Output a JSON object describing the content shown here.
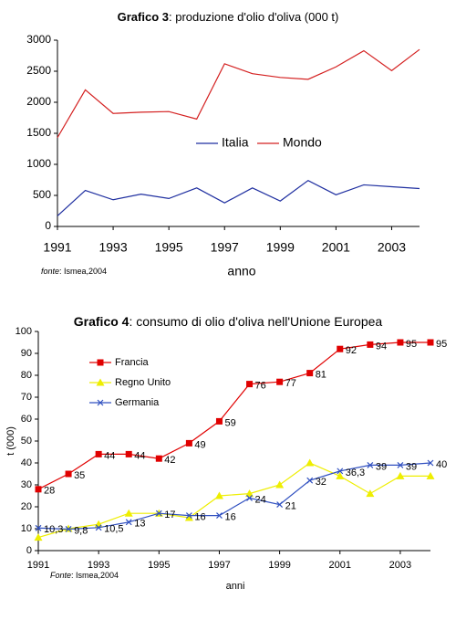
{
  "chart_data": [
    {
      "type": "line",
      "title_bold": "Grafico 3",
      "title": ": produzione d'olio d'oliva (000 t)",
      "x": [
        1991,
        1992,
        1993,
        1994,
        1995,
        1996,
        1997,
        1998,
        1999,
        2000,
        2001,
        2002,
        2003,
        2004
      ],
      "series": [
        {
          "name": "Italia",
          "color": "#1f2fa0",
          "values": [
            170,
            580,
            430,
            520,
            450,
            620,
            380,
            620,
            410,
            740,
            510,
            670,
            640,
            610
          ]
        },
        {
          "name": "Mondo",
          "color": "#d42020",
          "values": [
            1430,
            2200,
            1820,
            1840,
            1850,
            1730,
            2620,
            2460,
            2400,
            2370,
            2570,
            2830,
            2510,
            2850
          ]
        }
      ],
      "xlim": [
        1991,
        2004
      ],
      "xticks": [
        1991,
        1993,
        1995,
        1997,
        1999,
        2001,
        2003
      ],
      "ylim": [
        0,
        3000
      ],
      "yticks": [
        0,
        500,
        1000,
        1500,
        2000,
        2500,
        3000
      ],
      "xlabel": "anno",
      "source_label": "fonte",
      "source": ": Ismea,2004",
      "legend": "center",
      "grid": false
    },
    {
      "type": "line",
      "title_bold": "Grafico 4",
      "title": ": consumo di olio d'oliva nell'Unione Europea",
      "x": [
        1991,
        1992,
        1993,
        1994,
        1995,
        1996,
        1997,
        1998,
        1999,
        2000,
        2001,
        2002,
        2003,
        2004
      ],
      "series": [
        {
          "name": "Francia",
          "color": "#e00000",
          "marker": "square",
          "show_labels": true,
          "values": [
            28,
            35,
            44,
            44,
            42,
            49,
            59,
            76,
            77,
            81,
            92,
            94,
            95,
            95
          ]
        },
        {
          "name": "Regno Unito",
          "color": "#eeee00",
          "marker": "triangle",
          "show_labels": false,
          "values": [
            6,
            10,
            12,
            17,
            17,
            15,
            25,
            26,
            30,
            40,
            34,
            26,
            34,
            34
          ]
        },
        {
          "name": "Germania",
          "color": "#3050c0",
          "marker": "x",
          "show_labels": true,
          "values": [
            10.3,
            9.8,
            10.5,
            13,
            17,
            16,
            16,
            24,
            21,
            32,
            36.3,
            39,
            39,
            40
          ],
          "value_labels": [
            "10,3",
            "9,8",
            "10,5",
            "13",
            "17",
            "16",
            "16",
            "24",
            "21",
            "32",
            "36,3",
            "39",
            "39",
            "40"
          ]
        }
      ],
      "xlim": [
        1991,
        2004
      ],
      "xticks": [
        1991,
        1993,
        1995,
        1997,
        1999,
        2001,
        2003
      ],
      "ylim": [
        0,
        100
      ],
      "yticks": [
        0,
        10,
        20,
        30,
        40,
        50,
        60,
        70,
        80,
        90,
        100
      ],
      "xlabel": "anni",
      "ylabel": "t (000)",
      "source_label": "Fonte",
      "source": ": Ismea,2004",
      "legend": "top-left",
      "grid": false
    }
  ]
}
